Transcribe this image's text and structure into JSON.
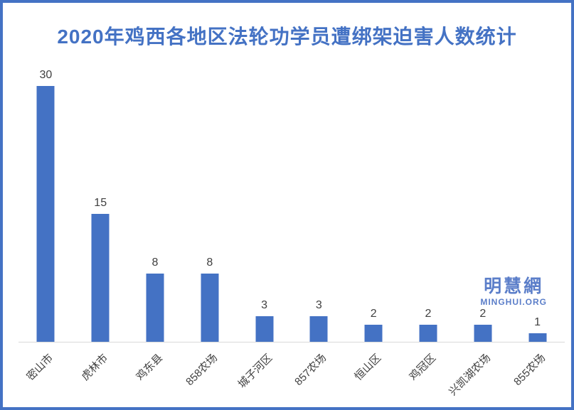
{
  "title": "2020年鸡西各地区法轮功学员遭绑架迫害人数统计",
  "watermark": {
    "cn": "明慧網",
    "en": "MINGHUI.ORG"
  },
  "colors": {
    "bar": "#4472C4",
    "title": "#4472C4",
    "frame_border": "#4472C4",
    "data_label": "#404040",
    "axis_label": "#404040",
    "axis_line": "#D9D9D9",
    "watermark": "#5B7EC9",
    "background": "#FFFFFF"
  },
  "chart_data": {
    "type": "bar",
    "title": "2020年鸡西各地区法轮功学员遭绑架迫害人数统计",
    "categories": [
      "密山市",
      "虎林市",
      "鸡东县",
      "858农场",
      "城子河区",
      "857农场",
      "恒山区",
      "鸡冠区",
      "兴凯湖农场",
      "855农场"
    ],
    "values": [
      30,
      15,
      8,
      8,
      3,
      3,
      2,
      2,
      2,
      1
    ],
    "xlabel": "",
    "ylabel": "",
    "ylim": [
      0,
      30
    ],
    "grid": false,
    "legend": false,
    "y_axis_visible": false,
    "data_labels_visible": true,
    "x_labels_rotation_deg": 45
  }
}
